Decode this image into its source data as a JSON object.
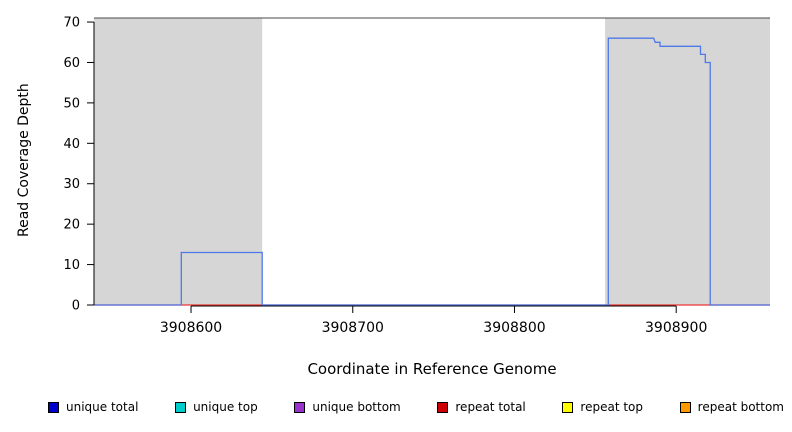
{
  "chart_data": {
    "type": "line",
    "title": "",
    "xlabel": "Coordinate in Reference Genome",
    "ylabel": "Read Coverage Depth",
    "xlim": [
      3908540,
      3908958
    ],
    "ylim": [
      0,
      71
    ],
    "x_ticks": [
      3908600,
      3908700,
      3908800,
      3908900
    ],
    "y_ticks": [
      0,
      10,
      20,
      30,
      40,
      50,
      60,
      70
    ],
    "grid": false,
    "legend_position": "bottom",
    "shaded_regions": [
      {
        "x0": 3908540,
        "x1": 3908644,
        "color": "#d6d6d6"
      },
      {
        "x0": 3908856,
        "x1": 3908958,
        "color": "#d6d6d6"
      }
    ],
    "top_rule": {
      "y": 71,
      "color": "#4a4a4a"
    },
    "series": [
      {
        "name": "unique total",
        "color": "#4d79e8",
        "points": [
          [
            3908540,
            0
          ],
          [
            3908594,
            0
          ],
          [
            3908594,
            13
          ],
          [
            3908644,
            13
          ],
          [
            3908644,
            0
          ],
          [
            3908858,
            0
          ],
          [
            3908858,
            66
          ],
          [
            3908886,
            66
          ],
          [
            3908887,
            65
          ],
          [
            3908890,
            65
          ],
          [
            3908890,
            64
          ],
          [
            3908915,
            64
          ],
          [
            3908915,
            62
          ],
          [
            3908918,
            62
          ],
          [
            3908918,
            60
          ],
          [
            3908921,
            60
          ],
          [
            3908921,
            0
          ],
          [
            3908958,
            0
          ]
        ]
      },
      {
        "name": "repeat total",
        "color": "#ee3333",
        "points": [
          [
            3908540,
            0
          ],
          [
            3908958,
            0
          ]
        ]
      }
    ]
  },
  "legend": {
    "items": [
      {
        "label": "unique total",
        "color": "#0000CC"
      },
      {
        "label": "unique top",
        "color": "#00CCCC"
      },
      {
        "label": "unique bottom",
        "color": "#9933CC"
      },
      {
        "label": "repeat total",
        "color": "#CC0000"
      },
      {
        "label": "repeat top",
        "color": "#FFFF00"
      },
      {
        "label": "repeat bottom",
        "color": "#FF9900"
      }
    ]
  }
}
